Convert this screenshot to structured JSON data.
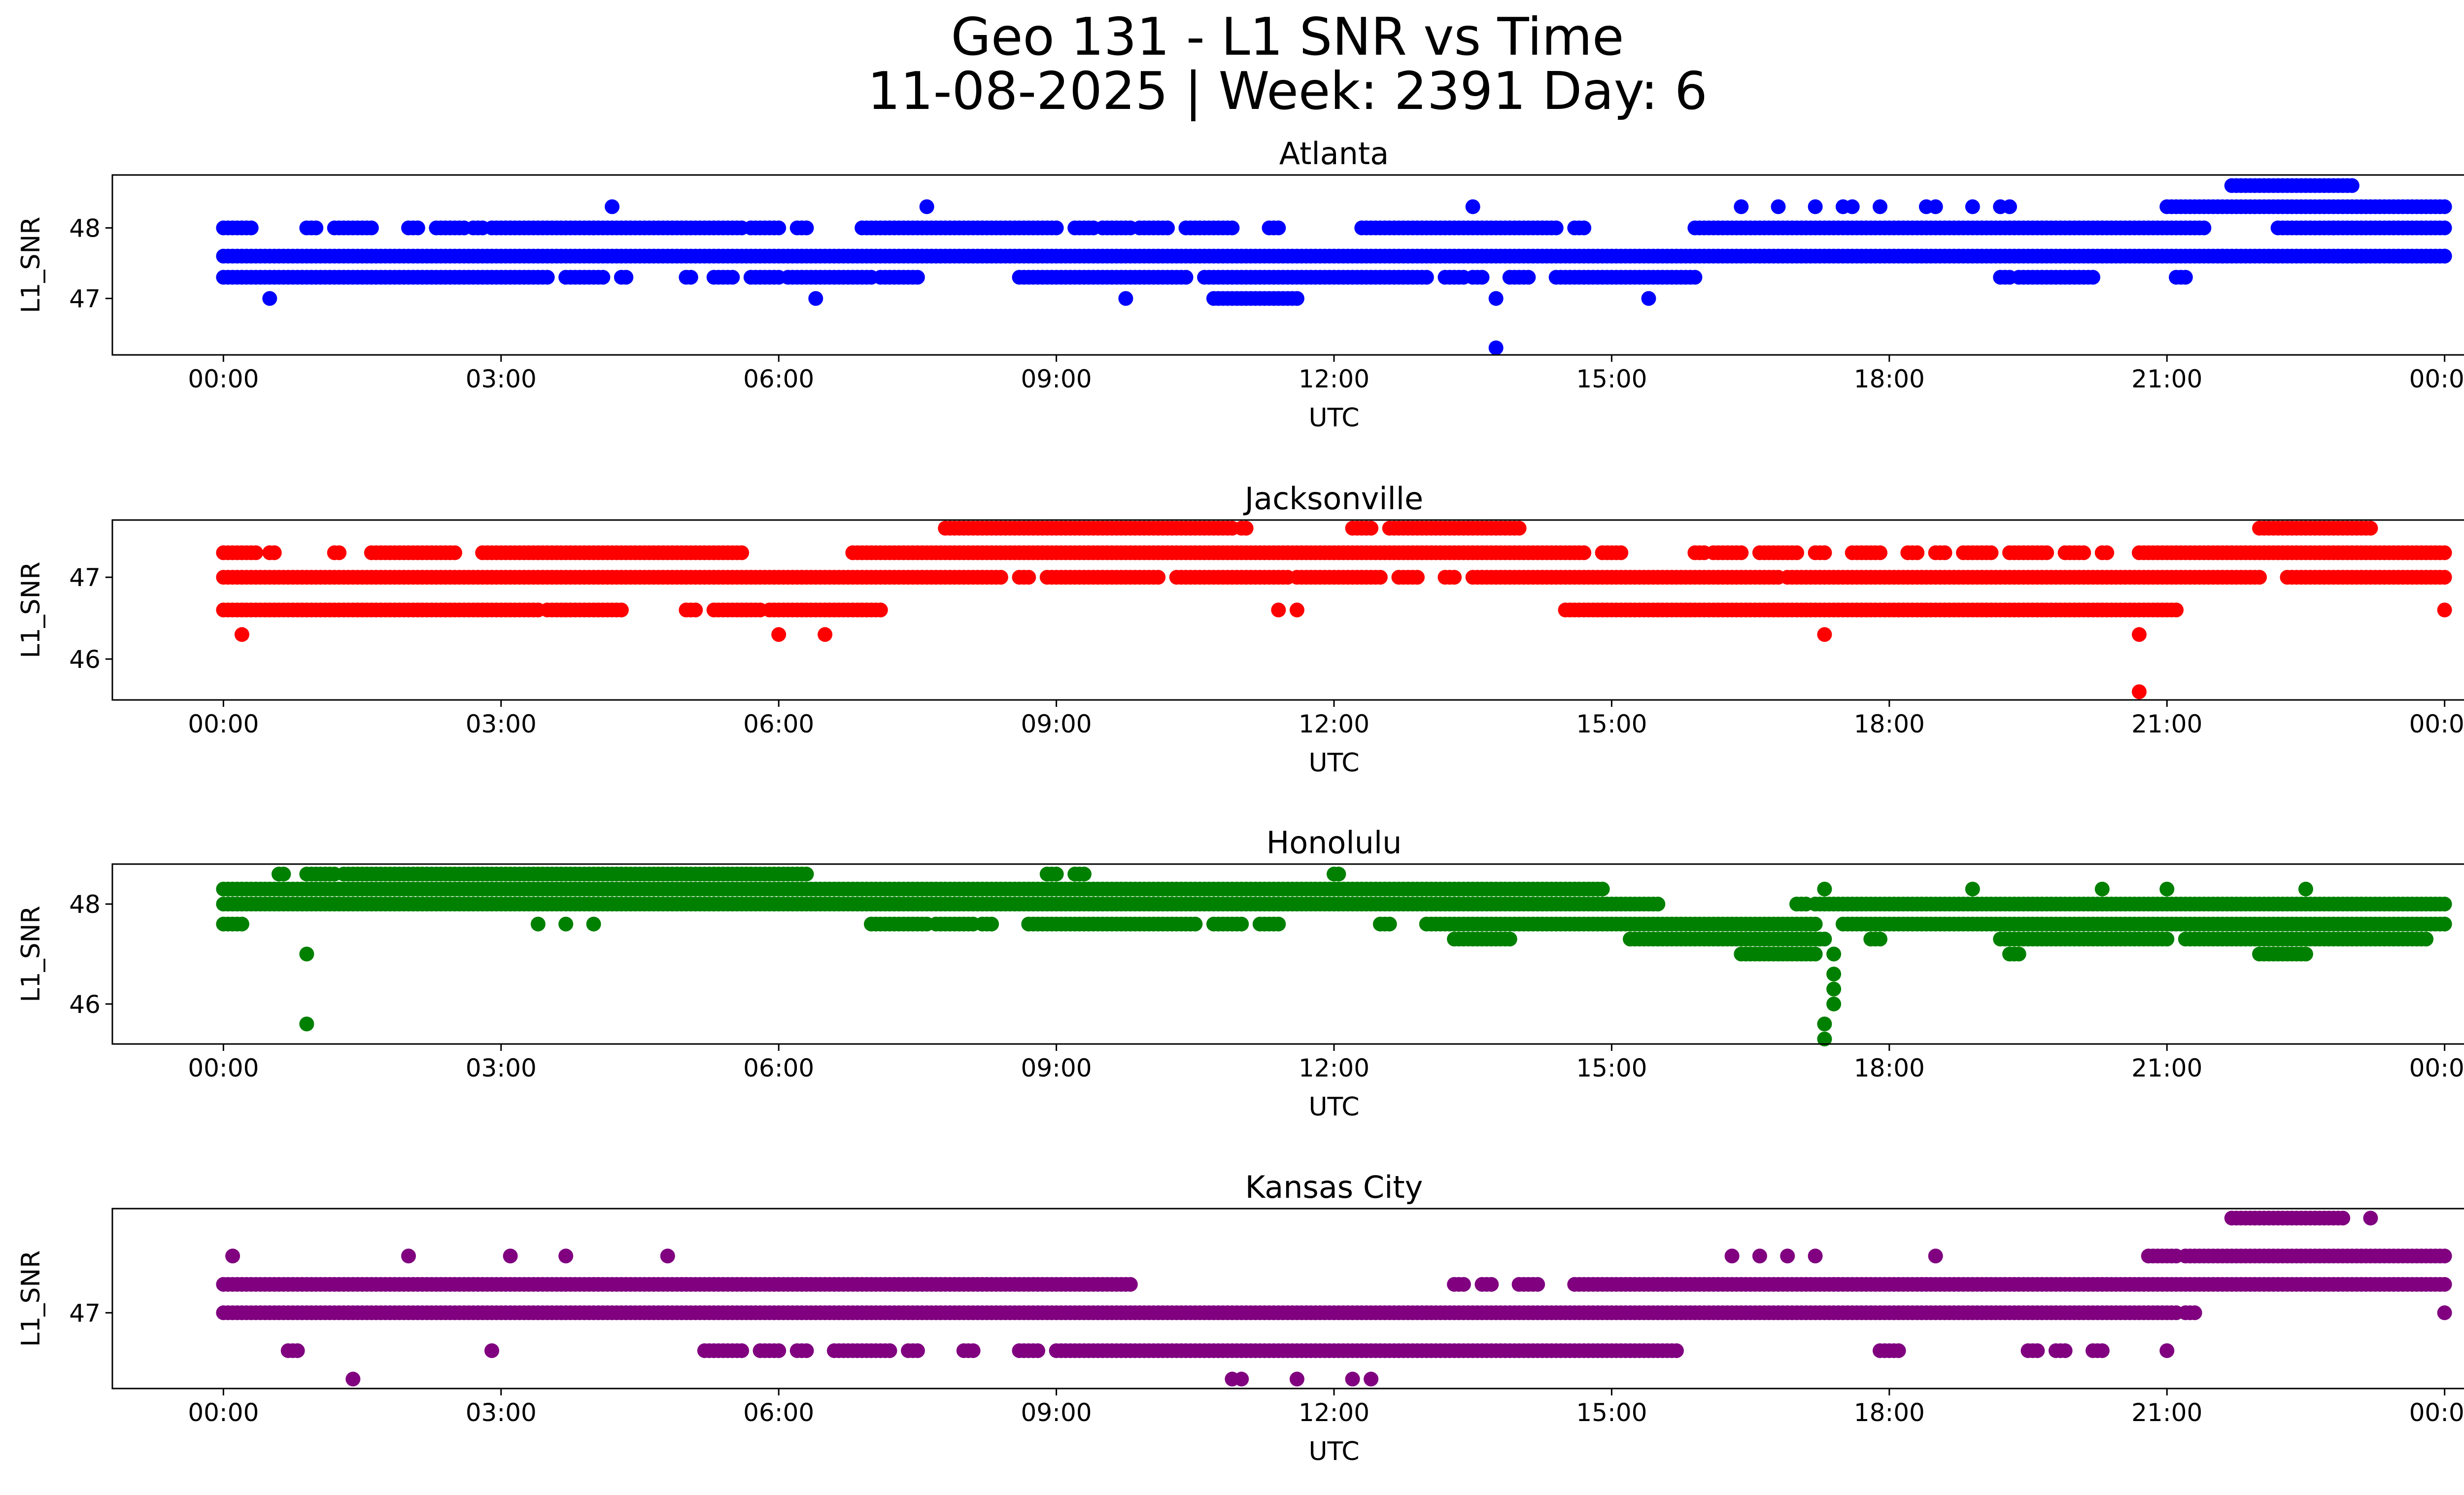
{
  "figure": {
    "title_line1": "Geo 131 - L1 SNR vs Time",
    "title_line2": "11-08-2025 | Week: 2391 Day: 6"
  },
  "chart_data": [
    {
      "type": "scatter",
      "title": "Atlanta",
      "xlabel": "UTC",
      "ylabel": "L1_SNR",
      "color": "#0000ff",
      "xticks": [
        "00:00",
        "03:00",
        "06:00",
        "09:00",
        "12:00",
        "15:00",
        "18:00",
        "21:00",
        "00:00"
      ],
      "xlim_hours": [
        -1.2,
        25.2
      ],
      "yticks": [
        47,
        48
      ],
      "ylim": [
        46.2,
        48.75
      ],
      "bands": [
        {
          "y": 47.6,
          "segments": [
            [
              0.0,
              24.0
            ]
          ]
        },
        {
          "y": 48.0,
          "segments": [
            [
              0.0,
              0.3
            ],
            [
              0.9,
              1.0
            ],
            [
              1.2,
              1.6
            ],
            [
              2.0,
              2.1
            ],
            [
              2.3,
              2.6
            ],
            [
              2.7,
              2.8
            ],
            [
              2.9,
              4.0
            ],
            [
              4.0,
              5.6
            ],
            [
              5.7,
              6.0
            ],
            [
              6.2,
              6.3
            ],
            [
              6.9,
              9.0
            ],
            [
              9.2,
              9.4
            ],
            [
              9.5,
              9.8
            ],
            [
              9.9,
              10.2
            ],
            [
              10.4,
              10.9
            ],
            [
              11.3,
              11.4
            ],
            [
              12.3,
              14.4
            ],
            [
              14.6,
              14.7
            ],
            [
              15.9,
              21.4
            ],
            [
              22.2,
              24.0
            ]
          ]
        },
        {
          "y": 47.3,
          "segments": [
            [
              0.0,
              3.5
            ],
            [
              3.7,
              4.1
            ],
            [
              4.3,
              4.35
            ],
            [
              5.0,
              5.05
            ],
            [
              5.3,
              5.5
            ],
            [
              5.7,
              6.0
            ],
            [
              6.1,
              7.0
            ],
            [
              7.1,
              7.5
            ],
            [
              8.6,
              10.4
            ],
            [
              10.6,
              13.0
            ],
            [
              13.2,
              13.4
            ],
            [
              13.5,
              13.6
            ],
            [
              13.9,
              14.1
            ],
            [
              14.4,
              15.9
            ],
            [
              19.2,
              19.3
            ],
            [
              19.4,
              20.2
            ],
            [
              21.1,
              21.2
            ]
          ]
        },
        {
          "y": 48.3,
          "segments": [
            [
              21.0,
              24.0
            ]
          ]
        },
        {
          "y": 48.6,
          "segments": [
            [
              21.7,
              23.0
            ]
          ]
        },
        {
          "y": 47.0,
          "segments": [
            [
              10.7,
              11.6
            ]
          ]
        }
      ],
      "points": [
        [
          0.5,
          47.0
        ],
        [
          4.2,
          48.3
        ],
        [
          6.4,
          47.0
        ],
        [
          7.6,
          48.3
        ],
        [
          9.75,
          47.0
        ],
        [
          13.5,
          48.3
        ],
        [
          13.75,
          47.0
        ],
        [
          13.75,
          46.3
        ],
        [
          15.4,
          47.0
        ],
        [
          16.4,
          48.3
        ],
        [
          16.8,
          48.3
        ],
        [
          17.2,
          48.3
        ],
        [
          17.5,
          48.3
        ],
        [
          17.6,
          48.3
        ],
        [
          17.9,
          48.3
        ],
        [
          18.4,
          48.3
        ],
        [
          18.5,
          48.3
        ],
        [
          18.9,
          48.3
        ],
        [
          19.2,
          48.3
        ],
        [
          19.3,
          48.3
        ],
        [
          21.6,
          47.6
        ],
        [
          22.8,
          48.0
        ],
        [
          24.0,
          47.6
        ]
      ]
    },
    {
      "type": "scatter",
      "title": "Jacksonville",
      "xlabel": "UTC",
      "ylabel": "L1_SNR",
      "color": "#ff0000",
      "xticks": [
        "00:00",
        "03:00",
        "06:00",
        "09:00",
        "12:00",
        "15:00",
        "18:00",
        "21:00",
        "00:00"
      ],
      "xlim_hours": [
        -1.2,
        25.2
      ],
      "yticks": [
        46,
        47
      ],
      "ylim": [
        45.5,
        47.7
      ],
      "bands": [
        {
          "y": 47.0,
          "segments": [
            [
              0.0,
              8.4
            ],
            [
              8.6,
              8.7
            ],
            [
              8.9,
              10.1
            ],
            [
              10.3,
              11.5
            ],
            [
              11.6,
              12.5
            ],
            [
              12.7,
              12.9
            ],
            [
              13.2,
              13.3
            ],
            [
              13.5,
              16.8
            ],
            [
              16.9,
              22.0
            ],
            [
              22.3,
              24.0
            ]
          ]
        },
        {
          "y": 46.6,
          "segments": [
            [
              0.0,
              3.4
            ],
            [
              3.5,
              4.3
            ],
            [
              5.0,
              5.1
            ],
            [
              5.3,
              5.8
            ],
            [
              5.9,
              7.1
            ],
            [
              14.5,
              21.1
            ]
          ]
        },
        {
          "y": 47.3,
          "segments": [
            [
              0.0,
              0.35
            ],
            [
              0.5,
              0.55
            ],
            [
              1.2,
              1.25
            ],
            [
              1.6,
              2.5
            ],
            [
              2.8,
              5.6
            ],
            [
              6.8,
              14.7
            ],
            [
              14.9,
              15.1
            ],
            [
              15.9,
              16.0
            ],
            [
              16.1,
              16.4
            ],
            [
              16.6,
              17.0
            ],
            [
              17.2,
              17.3
            ],
            [
              17.6,
              17.9
            ],
            [
              18.2,
              18.3
            ],
            [
              18.5,
              18.6
            ],
            [
              18.8,
              19.1
            ],
            [
              19.3,
              19.7
            ],
            [
              19.9,
              20.1
            ],
            [
              20.3,
              20.35
            ],
            [
              20.7,
              24.0
            ]
          ]
        },
        {
          "y": 47.6,
          "segments": [
            [
              7.8,
              10.9
            ],
            [
              11.0,
              11.05
            ],
            [
              12.2,
              12.4
            ],
            [
              12.6,
              14.0
            ],
            [
              22.0,
              23.2
            ]
          ]
        }
      ],
      "points": [
        [
          0.2,
          46.3
        ],
        [
          6.0,
          46.3
        ],
        [
          6.5,
          46.3
        ],
        [
          11.4,
          46.6
        ],
        [
          11.6,
          46.6
        ],
        [
          17.3,
          46.3
        ],
        [
          20.7,
          46.3
        ],
        [
          20.7,
          45.6
        ],
        [
          24.0,
          46.6
        ]
      ]
    },
    {
      "type": "scatter",
      "title": "Honolulu",
      "xlabel": "UTC",
      "ylabel": "L1_SNR",
      "color": "#008000",
      "xticks": [
        "00:00",
        "03:00",
        "06:00",
        "09:00",
        "12:00",
        "15:00",
        "18:00",
        "21:00",
        "00:00"
      ],
      "xlim_hours": [
        -1.2,
        25.2
      ],
      "yticks": [
        46,
        48
      ],
      "ylim": [
        45.2,
        48.8
      ],
      "bands": [
        {
          "y": 48.6,
          "segments": [
            [
              0.6,
              0.65
            ],
            [
              0.9,
              1.2
            ],
            [
              1.3,
              6.3
            ],
            [
              8.9,
              9.0
            ],
            [
              9.2,
              9.3
            ],
            [
              12.0,
              12.05
            ]
          ]
        },
        {
          "y": 48.3,
          "segments": [
            [
              0.0,
              14.9
            ]
          ]
        },
        {
          "y": 48.0,
          "segments": [
            [
              0.0,
              15.5
            ],
            [
              17.0,
              17.1
            ],
            [
              17.2,
              24.0
            ]
          ]
        },
        {
          "y": 47.6,
          "segments": [
            [
              0.0,
              0.2
            ],
            [
              7.0,
              7.6
            ],
            [
              7.7,
              8.1
            ],
            [
              8.2,
              8.3
            ],
            [
              8.7,
              10.5
            ],
            [
              10.7,
              11.0
            ],
            [
              11.2,
              11.4
            ],
            [
              12.5,
              12.6
            ],
            [
              13.0,
              17.2
            ],
            [
              17.5,
              24.0
            ]
          ]
        },
        {
          "y": 47.3,
          "segments": [
            [
              13.3,
              13.9
            ],
            [
              15.2,
              17.3
            ],
            [
              17.8,
              17.9
            ],
            [
              19.2,
              21.0
            ],
            [
              21.2,
              23.8
            ]
          ]
        },
        {
          "y": 47.0,
          "segments": [
            [
              16.4,
              17.2
            ],
            [
              19.3,
              19.4
            ],
            [
              22.0,
              22.5
            ]
          ]
        }
      ],
      "points": [
        [
          3.4,
          47.6
        ],
        [
          3.7,
          47.6
        ],
        [
          4.0,
          47.6
        ],
        [
          0.9,
          47.0
        ],
        [
          0.9,
          45.6
        ],
        [
          17.3,
          48.3
        ],
        [
          17.4,
          47.0
        ],
        [
          17.4,
          46.6
        ],
        [
          17.4,
          46.3
        ],
        [
          17.4,
          46.0
        ],
        [
          17.3,
          45.6
        ],
        [
          17.3,
          45.3
        ],
        [
          18.9,
          48.3
        ],
        [
          20.3,
          48.3
        ],
        [
          21.0,
          48.3
        ],
        [
          22.5,
          48.3
        ],
        [
          24.0,
          47.6
        ]
      ]
    },
    {
      "type": "scatter",
      "title": "Kansas City",
      "xlabel": "UTC",
      "ylabel": "L1_SNR",
      "color": "#800080",
      "xticks": [
        "00:00",
        "03:00",
        "06:00",
        "09:00",
        "12:00",
        "15:00",
        "18:00",
        "21:00",
        "00:00"
      ],
      "xlim_hours": [
        -1.2,
        25.2
      ],
      "yticks": [
        47
      ],
      "ylim": [
        46.2,
        48.1
      ],
      "bands": [
        {
          "y": 47.3,
          "segments": [
            [
              0.0,
              9.8
            ],
            [
              13.3,
              13.4
            ],
            [
              13.6,
              13.7
            ],
            [
              14.0,
              14.2
            ],
            [
              14.6,
              24.0
            ]
          ]
        },
        {
          "y": 47.0,
          "segments": [
            [
              0.0,
              21.1
            ],
            [
              21.2,
              21.3
            ]
          ]
        },
        {
          "y": 46.6,
          "segments": [
            [
              0.7,
              0.8
            ],
            [
              5.2,
              5.6
            ],
            [
              5.8,
              6.0
            ],
            [
              6.2,
              6.3
            ],
            [
              6.6,
              7.2
            ],
            [
              7.4,
              7.5
            ],
            [
              8.0,
              8.1
            ],
            [
              8.6,
              8.8
            ],
            [
              9.0,
              15.7
            ],
            [
              17.9,
              18.1
            ],
            [
              19.5,
              19.6
            ],
            [
              19.8,
              19.9
            ],
            [
              20.2,
              20.3
            ]
          ]
        },
        {
          "y": 47.6,
          "segments": [
            [
              20.8,
              21.1
            ],
            [
              21.2,
              24.0
            ]
          ]
        },
        {
          "y": 48.0,
          "segments": [
            [
              21.7,
              22.9
            ]
          ]
        }
      ],
      "points": [
        [
          0.1,
          47.6
        ],
        [
          2.0,
          47.6
        ],
        [
          3.1,
          47.6
        ],
        [
          3.7,
          47.6
        ],
        [
          4.8,
          47.6
        ],
        [
          16.3,
          47.6
        ],
        [
          16.6,
          47.6
        ],
        [
          16.9,
          47.6
        ],
        [
          17.2,
          47.6
        ],
        [
          18.5,
          47.6
        ],
        [
          2.9,
          46.6
        ],
        [
          1.4,
          46.3
        ],
        [
          10.9,
          46.3
        ],
        [
          11.0,
          46.3
        ],
        [
          11.6,
          46.3
        ],
        [
          12.2,
          46.3
        ],
        [
          12.4,
          46.3
        ],
        [
          21.0,
          46.6
        ],
        [
          23.2,
          48.0
        ],
        [
          24.0,
          47.0
        ]
      ]
    }
  ]
}
